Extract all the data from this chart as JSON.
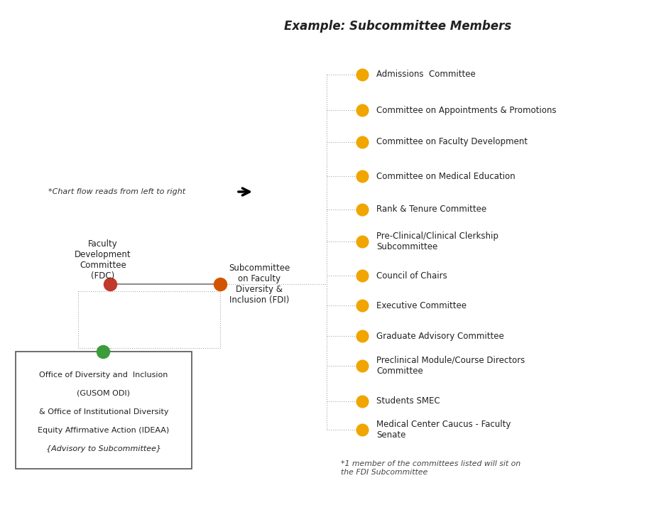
{
  "title": "Example: Subcommittee Members",
  "title_fontsize": 12,
  "background_color": "#ffffff",
  "fdc_label": "Faculty\nDevelopment\nCommittee\n(FDC)",
  "fdi_label": "Subcommittee\non Faculty\nDiversity &\nInclusion (FDI)",
  "odi_label_lines": [
    "Office of Diversity and  Inclusion",
    "(GUSOM ODI)",
    "& Office of Institutional Diversity",
    "Equity Affirmative Action (IDEAA)",
    "{Advisory to Subcommittee}"
  ],
  "note_flow": "*Chart flow reads from left to right",
  "note_footnote": "*1 member of the committees listed will sit on\nthe FDI Subcommittee",
  "fdc_dot_color": "#c0392b",
  "fdi_dot_color": "#d35400",
  "odi_dot_color": "#3a9c3a",
  "committee_dot_color": "#f0a500",
  "line_color": "#aaaaaa",
  "committees": [
    {
      "label": "Admissions  Committee",
      "multiline": false
    },
    {
      "label": "Committee on Appointments & Promotions",
      "multiline": false
    },
    {
      "label": "Committee on Faculty Development",
      "multiline": false
    },
    {
      "label": "Committee on Medical Education",
      "multiline": false
    },
    {
      "label": "Rank & Tenure Committee",
      "multiline": false
    },
    {
      "label": "Pre-Clinical/Clinical Clerkship\nSubcommittee",
      "multiline": true
    },
    {
      "label": "Council of Chairs",
      "multiline": false
    },
    {
      "label": "Executive Committee",
      "multiline": false
    },
    {
      "label": "Graduate Advisory Committee",
      "multiline": false
    },
    {
      "label": "Preclinical Module/Course Directors\nCommittee",
      "multiline": true
    },
    {
      "label": "Students SMEC",
      "multiline": false
    },
    {
      "label": "Medical Center Caucus - Faculty\nSenate",
      "multiline": true
    }
  ]
}
